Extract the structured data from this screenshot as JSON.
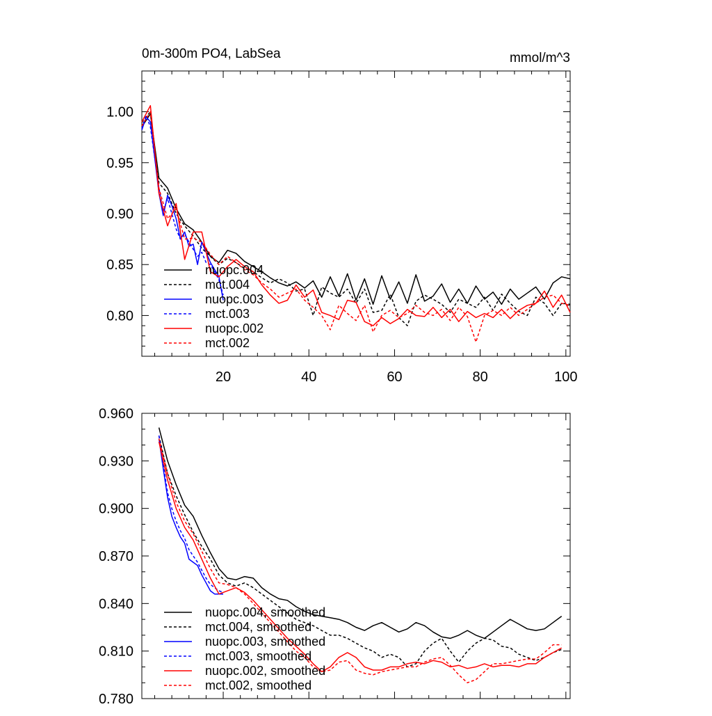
{
  "chart_data": [
    {
      "type": "line",
      "title": "0m-300m PO4, LabSea",
      "units": "mmol/m^3",
      "xlabel": "",
      "ylabel": "",
      "xlim": [
        1,
        101
      ],
      "ylim": [
        0.76,
        1.04
      ],
      "xticks": [
        20,
        40,
        60,
        80,
        100
      ],
      "yticks": [
        0.8,
        0.85,
        0.9,
        0.95,
        1.0
      ],
      "ytick_decimals": 2,
      "show_xtick_labels": true,
      "legend_position": "bottom-left",
      "grid": false,
      "series": [
        {
          "name": "nuopc.004",
          "color": "#000000",
          "dash": "solid",
          "x": [
            1,
            3,
            5,
            7,
            9,
            11,
            13,
            15,
            17,
            19,
            21,
            23,
            25,
            27,
            29,
            31,
            33,
            35,
            37,
            39,
            41,
            43,
            45,
            47,
            49,
            51,
            53,
            55,
            57,
            59,
            61,
            63,
            65,
            67,
            69,
            71,
            73,
            75,
            77,
            79,
            81,
            83,
            85,
            87,
            89,
            91,
            93,
            95,
            97,
            99,
            101
          ],
          "y": [
            0.985,
            0.998,
            0.935,
            0.925,
            0.905,
            0.89,
            0.884,
            0.872,
            0.858,
            0.852,
            0.864,
            0.861,
            0.853,
            0.848,
            0.843,
            0.837,
            0.832,
            0.829,
            0.833,
            0.827,
            0.834,
            0.818,
            0.838,
            0.819,
            0.841,
            0.815,
            0.836,
            0.811,
            0.839,
            0.816,
            0.833,
            0.812,
            0.84,
            0.814,
            0.819,
            0.831,
            0.813,
            0.826,
            0.812,
            0.829,
            0.816,
            0.823,
            0.811,
            0.826,
            0.816,
            0.822,
            0.828,
            0.816,
            0.832,
            0.838,
            0.836
          ]
        },
        {
          "name": "mct.004",
          "color": "#000000",
          "dash": "dashed",
          "x": [
            1,
            3,
            5,
            7,
            9,
            11,
            13,
            15,
            17,
            19,
            21,
            23,
            25,
            27,
            29,
            31,
            33,
            35,
            37,
            39,
            41,
            43,
            45,
            47,
            49,
            51,
            53,
            55,
            57,
            59,
            61,
            63,
            65,
            67,
            69,
            71,
            73,
            75,
            77,
            79,
            81,
            83,
            85,
            87,
            89,
            91,
            93,
            95,
            97,
            99,
            101
          ],
          "y": [
            0.99,
            1.0,
            0.93,
            0.92,
            0.9,
            0.888,
            0.878,
            0.866,
            0.858,
            0.85,
            0.856,
            0.852,
            0.846,
            0.843,
            0.837,
            0.832,
            0.836,
            0.832,
            0.824,
            0.826,
            0.8,
            0.828,
            0.822,
            0.818,
            0.826,
            0.812,
            0.826,
            0.803,
            0.805,
            0.821,
            0.798,
            0.79,
            0.814,
            0.82,
            0.816,
            0.811,
            0.803,
            0.816,
            0.812,
            0.808,
            0.818,
            0.805,
            0.821,
            0.812,
            0.804,
            0.8,
            0.818,
            0.812,
            0.8,
            0.812,
            0.811
          ]
        },
        {
          "name": "nuopc.003",
          "color": "#0000ff",
          "dash": "solid",
          "x": [
            1,
            2,
            3,
            4,
            5,
            6,
            7,
            8,
            9,
            10,
            11,
            12,
            13,
            14,
            15,
            16,
            17,
            18,
            19,
            20
          ],
          "y": [
            0.982,
            0.995,
            0.99,
            0.955,
            0.92,
            0.898,
            0.918,
            0.908,
            0.895,
            0.875,
            0.882,
            0.868,
            0.87,
            0.85,
            0.872,
            0.862,
            0.852,
            0.845,
            0.838,
            0.815
          ]
        },
        {
          "name": "mct.003",
          "color": "#0000ff",
          "dash": "dashed",
          "x": [
            1,
            2,
            3,
            4,
            5,
            6,
            7,
            8,
            9,
            10,
            11,
            12,
            13,
            14,
            15,
            16,
            17,
            18,
            19,
            20
          ],
          "y": [
            0.984,
            0.996,
            0.985,
            0.955,
            0.925,
            0.902,
            0.915,
            0.9,
            0.885,
            0.875,
            0.88,
            0.872,
            0.865,
            0.858,
            0.862,
            0.852,
            0.85,
            0.843,
            0.835,
            0.82
          ]
        },
        {
          "name": "nuopc.002",
          "color": "#ff0000",
          "dash": "solid",
          "x": [
            1,
            3,
            5,
            7,
            9,
            11,
            13,
            15,
            17,
            19,
            21,
            23,
            25,
            27,
            29,
            31,
            33,
            35,
            37,
            39,
            41,
            43,
            45,
            47,
            49,
            51,
            53,
            55,
            57,
            59,
            61,
            63,
            65,
            67,
            69,
            71,
            73,
            75,
            77,
            79,
            81,
            83,
            85,
            87,
            89,
            91,
            93,
            95,
            97,
            99,
            101
          ],
          "y": [
            0.99,
            1.006,
            0.92,
            0.888,
            0.91,
            0.855,
            0.882,
            0.882,
            0.843,
            0.838,
            0.848,
            0.855,
            0.848,
            0.843,
            0.83,
            0.82,
            0.812,
            0.815,
            0.83,
            0.818,
            0.825,
            0.803,
            0.8,
            0.796,
            0.815,
            0.813,
            0.794,
            0.79,
            0.798,
            0.792,
            0.797,
            0.806,
            0.8,
            0.799,
            0.808,
            0.798,
            0.806,
            0.794,
            0.804,
            0.798,
            0.802,
            0.798,
            0.806,
            0.797,
            0.805,
            0.81,
            0.812,
            0.824,
            0.808,
            0.82,
            0.803
          ]
        },
        {
          "name": "mct.002",
          "color": "#ff0000",
          "dash": "dashed",
          "x": [
            1,
            3,
            5,
            7,
            9,
            11,
            13,
            15,
            17,
            19,
            21,
            23,
            25,
            27,
            29,
            31,
            33,
            35,
            37,
            39,
            41,
            43,
            45,
            47,
            49,
            51,
            53,
            55,
            57,
            59,
            61,
            63,
            65,
            67,
            69,
            71,
            73,
            75,
            77,
            79,
            81,
            83,
            85,
            87,
            89,
            91,
            93,
            95,
            97,
            99,
            101
          ],
          "y": [
            0.986,
            1.0,
            0.925,
            0.895,
            0.905,
            0.875,
            0.876,
            0.872,
            0.86,
            0.85,
            0.858,
            0.852,
            0.845,
            0.84,
            0.832,
            0.826,
            0.818,
            0.822,
            0.826,
            0.815,
            0.808,
            0.8,
            0.786,
            0.81,
            0.802,
            0.795,
            0.81,
            0.784,
            0.8,
            0.805,
            0.798,
            0.802,
            0.81,
            0.803,
            0.8,
            0.806,
            0.795,
            0.808,
            0.799,
            0.774,
            0.8,
            0.805,
            0.8,
            0.808,
            0.8,
            0.806,
            0.812,
            0.818,
            0.82,
            0.812,
            0.81
          ]
        }
      ]
    },
    {
      "type": "line",
      "title": "",
      "units": "",
      "xlabel": "",
      "ylabel": "",
      "xlim": [
        1,
        101
      ],
      "ylim": [
        0.78,
        0.96
      ],
      "xticks": [
        20,
        40,
        60,
        80,
        100
      ],
      "yticks": [
        0.78,
        0.81,
        0.84,
        0.87,
        0.9,
        0.93,
        0.96
      ],
      "ytick_decimals": 3,
      "show_xtick_labels": false,
      "legend_position": "bottom-left",
      "grid": false,
      "series": [
        {
          "name": "nuopc.004, smoothed",
          "color": "#000000",
          "dash": "solid",
          "x": [
            5,
            7,
            9,
            11,
            13,
            15,
            17,
            19,
            21,
            23,
            25,
            27,
            29,
            31,
            33,
            35,
            37,
            39,
            41,
            43,
            45,
            47,
            49,
            51,
            53,
            55,
            57,
            59,
            61,
            63,
            65,
            67,
            69,
            71,
            73,
            75,
            77,
            79,
            81,
            83,
            85,
            87,
            89,
            91,
            93,
            95,
            97,
            99
          ],
          "y": [
            0.951,
            0.93,
            0.915,
            0.902,
            0.895,
            0.883,
            0.872,
            0.862,
            0.856,
            0.855,
            0.857,
            0.856,
            0.85,
            0.846,
            0.843,
            0.842,
            0.838,
            0.835,
            0.833,
            0.832,
            0.831,
            0.83,
            0.828,
            0.825,
            0.823,
            0.826,
            0.828,
            0.825,
            0.822,
            0.824,
            0.828,
            0.826,
            0.822,
            0.819,
            0.818,
            0.82,
            0.823,
            0.82,
            0.818,
            0.822,
            0.826,
            0.83,
            0.827,
            0.824,
            0.823,
            0.824,
            0.828,
            0.832
          ]
        },
        {
          "name": "mct.004, smoothed",
          "color": "#000000",
          "dash": "dashed",
          "x": [
            5,
            7,
            9,
            11,
            13,
            15,
            17,
            19,
            21,
            23,
            25,
            27,
            29,
            31,
            33,
            35,
            37,
            39,
            41,
            43,
            45,
            47,
            49,
            51,
            53,
            55,
            57,
            59,
            61,
            63,
            65,
            67,
            69,
            71,
            73,
            75,
            77,
            79,
            81,
            83,
            85,
            87,
            89,
            91,
            93,
            95,
            97,
            99
          ],
          "y": [
            0.946,
            0.922,
            0.908,
            0.896,
            0.885,
            0.876,
            0.868,
            0.858,
            0.853,
            0.851,
            0.853,
            0.85,
            0.846,
            0.842,
            0.838,
            0.834,
            0.83,
            0.828,
            0.826,
            0.823,
            0.82,
            0.82,
            0.818,
            0.815,
            0.812,
            0.81,
            0.806,
            0.808,
            0.806,
            0.8,
            0.802,
            0.81,
            0.815,
            0.818,
            0.81,
            0.803,
            0.81,
            0.815,
            0.818,
            0.817,
            0.813,
            0.812,
            0.808,
            0.806,
            0.804,
            0.806,
            0.809,
            0.811
          ]
        },
        {
          "name": "nuopc.003, smoothed",
          "color": "#0000ff",
          "dash": "solid",
          "x": [
            5,
            6,
            7,
            8,
            9,
            10,
            11,
            12,
            13,
            14,
            15,
            16,
            17,
            18,
            19,
            20
          ],
          "y": [
            0.944,
            0.925,
            0.907,
            0.895,
            0.888,
            0.882,
            0.878,
            0.868,
            0.866,
            0.864,
            0.858,
            0.853,
            0.848,
            0.846,
            0.846,
            0.846
          ]
        },
        {
          "name": "mct.003, smoothed",
          "color": "#0000ff",
          "dash": "dashed",
          "x": [
            5,
            6,
            7,
            8,
            9,
            10,
            11,
            12,
            13,
            14,
            15,
            16,
            17,
            18,
            19,
            20
          ],
          "y": [
            0.946,
            0.928,
            0.91,
            0.9,
            0.892,
            0.886,
            0.881,
            0.874,
            0.87,
            0.866,
            0.861,
            0.856,
            0.852,
            0.85,
            0.848,
            0.847
          ]
        },
        {
          "name": "nuopc.002, smoothed",
          "color": "#ff0000",
          "dash": "solid",
          "x": [
            5,
            7,
            9,
            11,
            13,
            15,
            17,
            19,
            21,
            23,
            25,
            27,
            29,
            31,
            33,
            35,
            37,
            39,
            41,
            43,
            45,
            47,
            49,
            51,
            53,
            55,
            57,
            59,
            61,
            63,
            65,
            67,
            69,
            71,
            73,
            75,
            77,
            79,
            81,
            83,
            85,
            87,
            89,
            91,
            93,
            95,
            97,
            99
          ],
          "y": [
            0.942,
            0.918,
            0.9,
            0.888,
            0.88,
            0.868,
            0.856,
            0.846,
            0.848,
            0.85,
            0.847,
            0.842,
            0.836,
            0.83,
            0.824,
            0.818,
            0.813,
            0.808,
            0.802,
            0.797,
            0.8,
            0.806,
            0.809,
            0.806,
            0.8,
            0.798,
            0.798,
            0.8,
            0.8,
            0.802,
            0.803,
            0.802,
            0.804,
            0.803,
            0.8,
            0.801,
            0.799,
            0.8,
            0.802,
            0.8,
            0.801,
            0.801,
            0.8,
            0.802,
            0.802,
            0.806,
            0.809,
            0.812
          ]
        },
        {
          "name": "mct.002, smoothed",
          "color": "#ff0000",
          "dash": "dashed",
          "x": [
            5,
            7,
            9,
            11,
            13,
            15,
            17,
            19,
            21,
            23,
            25,
            27,
            29,
            31,
            33,
            35,
            37,
            39,
            41,
            43,
            45,
            47,
            49,
            51,
            53,
            55,
            57,
            59,
            61,
            63,
            65,
            67,
            69,
            71,
            73,
            75,
            77,
            79,
            81,
            83,
            85,
            87,
            89,
            91,
            93,
            95,
            97,
            99
          ],
          "y": [
            0.944,
            0.922,
            0.904,
            0.892,
            0.884,
            0.873,
            0.862,
            0.853,
            0.852,
            0.85,
            0.846,
            0.84,
            0.834,
            0.828,
            0.822,
            0.816,
            0.81,
            0.806,
            0.8,
            0.797,
            0.798,
            0.803,
            0.804,
            0.798,
            0.796,
            0.795,
            0.797,
            0.798,
            0.799,
            0.8,
            0.8,
            0.803,
            0.805,
            0.806,
            0.801,
            0.795,
            0.79,
            0.792,
            0.797,
            0.802,
            0.802,
            0.803,
            0.804,
            0.805,
            0.805,
            0.809,
            0.814,
            0.814
          ]
        }
      ]
    }
  ]
}
